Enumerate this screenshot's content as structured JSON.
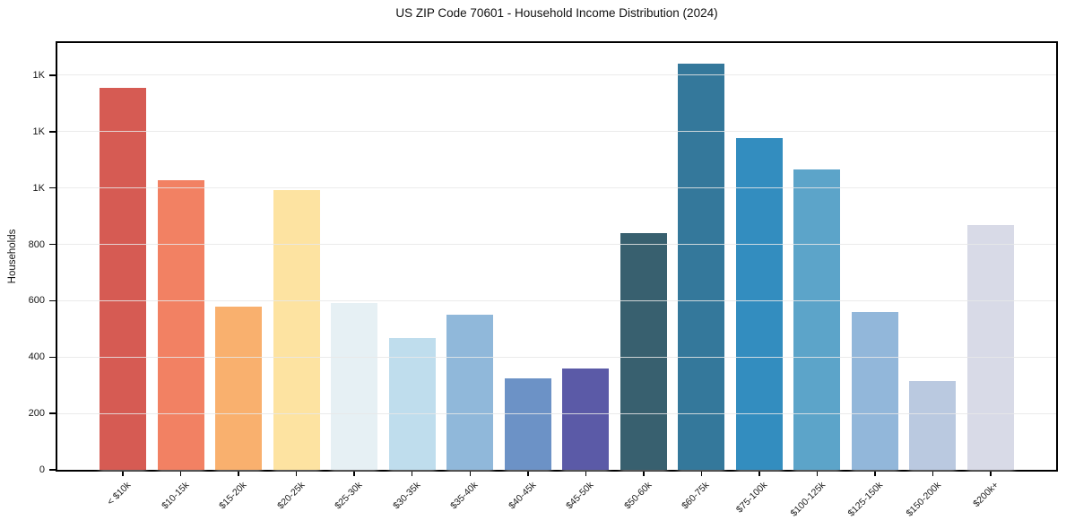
{
  "chart_data": {
    "type": "bar",
    "title": "US ZIP Code 70601 - Household Income Distribution (2024)",
    "xlabel": "",
    "ylabel": "Households",
    "categories": [
      "< $10k",
      "$10-15k",
      "$15-20k",
      "$20-25k",
      "$25-30k",
      "$30-35k",
      "$35-40k",
      "$40-45k",
      "$45-50k",
      "$50-60k",
      "$60-75k",
      "$75-100k",
      "$100-125k",
      "$125-150k",
      "$150-200k",
      "$200k+"
    ],
    "values": [
      1356,
      1029,
      578,
      991,
      592,
      468,
      550,
      326,
      359,
      841,
      1442,
      1176,
      1066,
      560,
      316,
      870
    ],
    "bar_colors": [
      "#d65b53",
      "#f28163",
      "#f9b06e",
      "#fde3a1",
      "#e6f0f4",
      "#bfdded",
      "#90b8da",
      "#6c92c6",
      "#5b5aa7",
      "#38606f",
      "#34789b",
      "#338dbf",
      "#5ca4c9",
      "#92b7da",
      "#bac9e0",
      "#d8dae7"
    ],
    "ylim": [
      0,
      1514
    ],
    "yticks": {
      "values": [
        0,
        200,
        400,
        600,
        800,
        1000,
        1200,
        1400
      ],
      "labels": [
        "0",
        "200",
        "400",
        "600",
        "800",
        "1K",
        "1K",
        "1K"
      ]
    },
    "grid": "horizontal",
    "legend": "none",
    "background_color": "#ffffff",
    "spine_color": "#000000",
    "gridline_color": "#e7e7e7"
  }
}
